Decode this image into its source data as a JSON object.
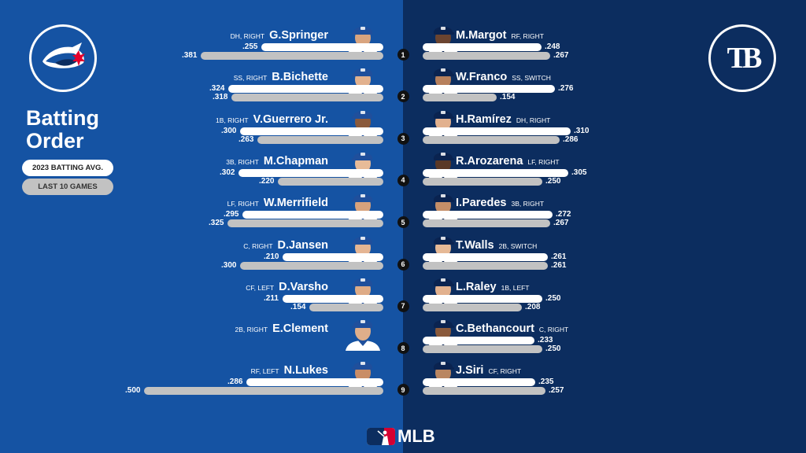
{
  "title_line1": "Batting",
  "title_line2": "Order",
  "legend": {
    "season": "2023 BATTING AVG.",
    "last10": "LAST 10 GAMES"
  },
  "teams": {
    "home_logo_text": "TB"
  },
  "brand": "MLB",
  "colors": {
    "jays_bg": "#1553a3",
    "rays_bg": "#0c2d5f",
    "season_bar": "#ffffff",
    "last10_bar": "#c2c2c2",
    "order_badge": "#111111"
  },
  "scale_max": 0.5,
  "orders": [
    "1",
    "2",
    "3",
    "4",
    "5",
    "6",
    "7",
    "8",
    "9"
  ],
  "jays": [
    {
      "name": "G.Springer",
      "pos": "DH, RIGHT",
      "avg": 0.255,
      "avg_label": ".255",
      "l10": 0.381,
      "l10_label": ".381",
      "cap": "#1f4f9c"
    },
    {
      "name": "B.Bichette",
      "pos": "SS, RIGHT",
      "avg": 0.324,
      "avg_label": ".324",
      "l10": 0.318,
      "l10_label": ".318",
      "cap": "#1f4f9c"
    },
    {
      "name": "V.Guerrero Jr.",
      "pos": "1B, RIGHT",
      "avg": 0.3,
      "avg_label": ".300",
      "l10": 0.263,
      "l10_label": ".263",
      "cap": "#1f4f9c"
    },
    {
      "name": "M.Chapman",
      "pos": "3B, RIGHT",
      "avg": 0.302,
      "avg_label": ".302",
      "l10": 0.22,
      "l10_label": ".220",
      "cap": "#1f4f9c"
    },
    {
      "name": "W.Merrifield",
      "pos": "LF, RIGHT",
      "avg": 0.295,
      "avg_label": ".295",
      "l10": 0.325,
      "l10_label": ".325",
      "cap": "#1f4f9c"
    },
    {
      "name": "D.Jansen",
      "pos": "C, RIGHT",
      "avg": 0.21,
      "avg_label": ".210",
      "l10": 0.3,
      "l10_label": ".300",
      "cap": "#1f4f9c"
    },
    {
      "name": "D.Varsho",
      "pos": "CF, LEFT",
      "avg": 0.211,
      "avg_label": ".211",
      "l10": 0.154,
      "l10_label": ".154",
      "cap": "#1f4f9c"
    },
    {
      "name": "E.Clement",
      "pos": "2B, RIGHT",
      "avg": null,
      "avg_label": "",
      "l10": null,
      "l10_label": "",
      "cap": "#1f4f9c"
    },
    {
      "name": "N.Lukes",
      "pos": "RF, LEFT",
      "avg": 0.286,
      "avg_label": ".286",
      "l10": 0.5,
      "l10_label": ".500",
      "cap": "#1f4f9c"
    }
  ],
  "rays": [
    {
      "name": "M.Margot",
      "pos": "RF, RIGHT",
      "avg": 0.248,
      "avg_label": ".248",
      "l10": 0.267,
      "l10_label": ".267",
      "cap": "#0a2350"
    },
    {
      "name": "W.Franco",
      "pos": "SS, SWITCH",
      "avg": 0.276,
      "avg_label": ".276",
      "l10": 0.154,
      "l10_label": ".154",
      "cap": "#0a2350"
    },
    {
      "name": "H.Ramírez",
      "pos": "DH, RIGHT",
      "avg": 0.31,
      "avg_label": ".310",
      "l10": 0.286,
      "l10_label": ".286",
      "cap": "#0a2350"
    },
    {
      "name": "R.Arozarena",
      "pos": "LF, RIGHT",
      "avg": 0.305,
      "avg_label": ".305",
      "l10": 0.25,
      "l10_label": ".250",
      "cap": "#0a2350"
    },
    {
      "name": "I.Paredes",
      "pos": "3B, RIGHT",
      "avg": 0.272,
      "avg_label": ".272",
      "l10": 0.267,
      "l10_label": ".267",
      "cap": "#0a2350"
    },
    {
      "name": "T.Walls",
      "pos": "2B, SWITCH",
      "avg": 0.261,
      "avg_label": ".261",
      "l10": 0.261,
      "l10_label": ".261",
      "cap": "#0a2350"
    },
    {
      "name": "L.Raley",
      "pos": "1B, LEFT",
      "avg": 0.25,
      "avg_label": ".250",
      "l10": 0.208,
      "l10_label": ".208",
      "cap": "#0a2350"
    },
    {
      "name": "C.Bethancourt",
      "pos": "C, RIGHT",
      "avg": 0.233,
      "avg_label": ".233",
      "l10": 0.25,
      "l10_label": ".250",
      "cap": "#0a2350"
    },
    {
      "name": "J.Siri",
      "pos": "CF, RIGHT",
      "avg": 0.235,
      "avg_label": ".235",
      "l10": 0.257,
      "l10_label": ".257",
      "cap": "#0a2350"
    }
  ]
}
